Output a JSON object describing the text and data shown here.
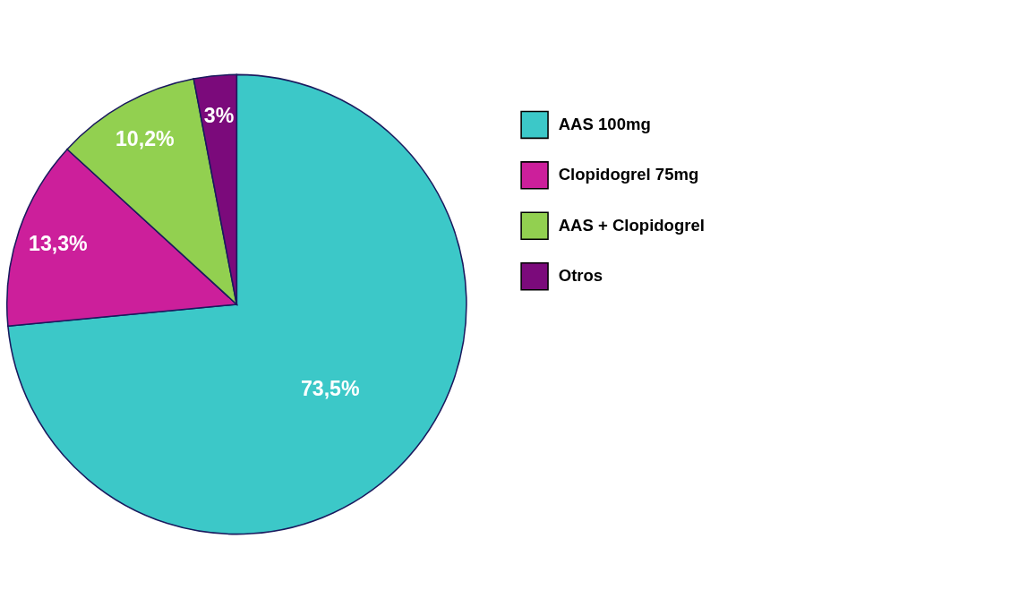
{
  "chart_data": {
    "type": "pie",
    "categories": [
      "AAS 100mg",
      "Clopidogrel 75mg",
      "AAS + Clopidogrel",
      "Otros"
    ],
    "values": [
      73.5,
      13.3,
      10.2,
      3
    ],
    "colors": [
      "#3cc8c8",
      "#cc1f9b",
      "#92d050",
      "#7b0a7b"
    ],
    "value_labels": [
      "73,5%",
      "13,3%",
      "10,2%",
      "3%"
    ],
    "legend": "top right"
  }
}
